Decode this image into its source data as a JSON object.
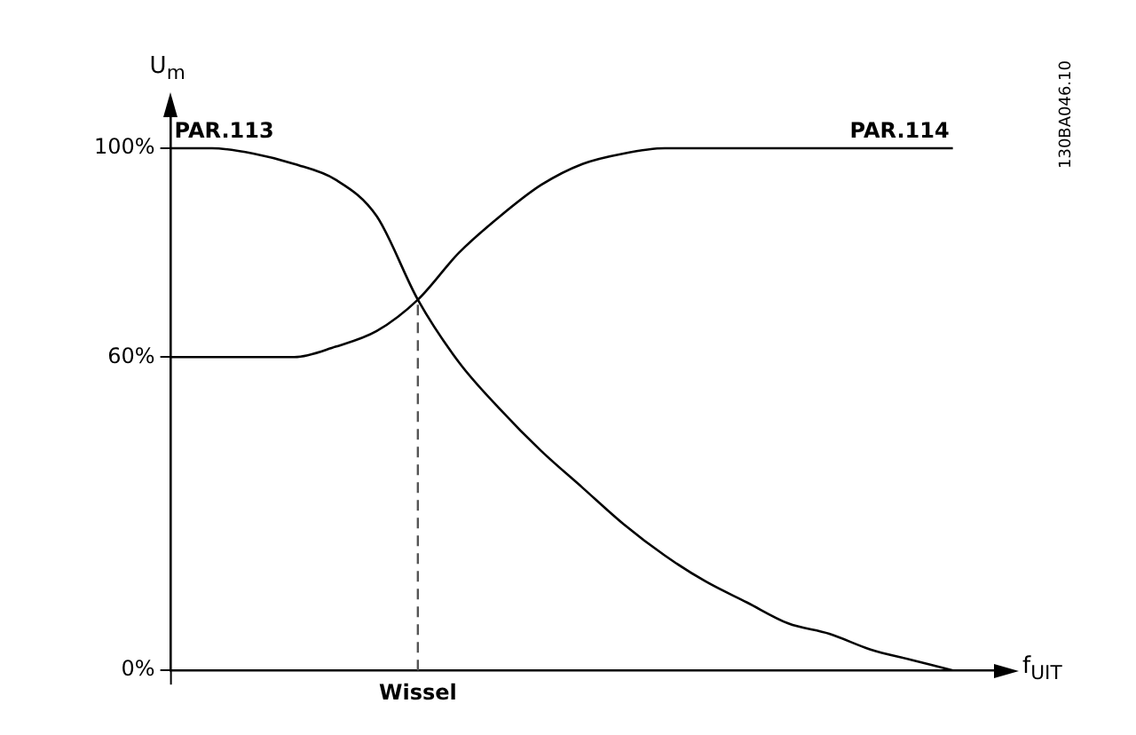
{
  "chart_data": {
    "type": "line",
    "ylabel": "U$_{m}$",
    "xlabel": "f$_{UIT}$",
    "categories": [
      null,
      null,
      null,
      null,
      null,
      null,
      "Wissel",
      null,
      null,
      null,
      null,
      null,
      null,
      null,
      null,
      null,
      null,
      null,
      null,
      null,
      null
    ],
    "series": [
      {
        "name": "PAR.113",
        "color": "#000000",
        "values": [
          100,
          100,
          99,
          97,
          94,
          87,
          71,
          59,
          50,
          42,
          35,
          28,
          22,
          17,
          13,
          9,
          7,
          4,
          2,
          0,
          null
        ]
      },
      {
        "name": "PAR.114",
        "color": "#000000",
        "values": [
          60,
          60,
          60,
          60,
          62,
          65,
          71,
          80,
          87,
          93,
          97,
          99,
          100,
          100,
          100,
          100,
          100,
          100,
          100,
          100,
          null
        ]
      }
    ],
    "ylim": [
      0,
      108
    ],
    "yticks": [
      {
        "value": 0,
        "label": "0%"
      },
      {
        "value": 60,
        "label": "60%"
      },
      {
        "value": 100,
        "label": "100%"
      }
    ],
    "ref_lines": [
      {
        "axis": "x",
        "value": "Wissel",
        "line_style": "dashed",
        "color": "#555555"
      }
    ],
    "annotations": [
      "130BA046.10"
    ],
    "grid": false,
    "legend": "top",
    "marker": "none",
    "line_style": "solid"
  }
}
